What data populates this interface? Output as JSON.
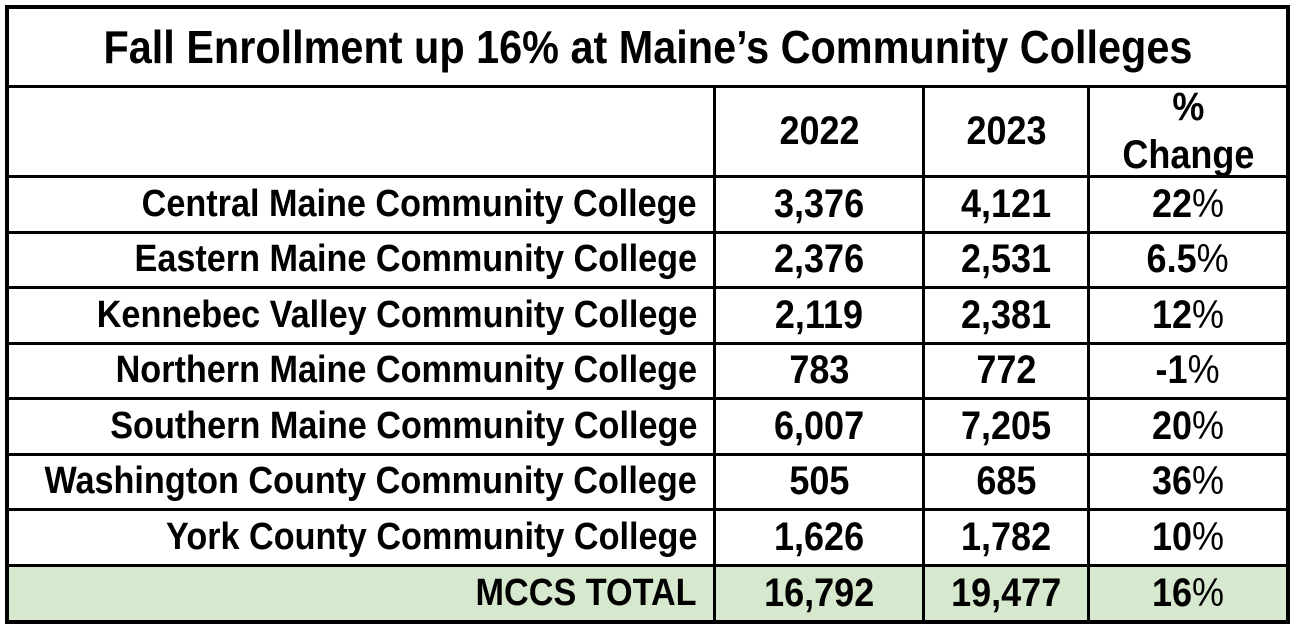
{
  "colors": {
    "background": "#ffffff",
    "border": "#000000",
    "text": "#000000",
    "total_row_bg": "#d6e8cd"
  },
  "chart_data": {
    "type": "table",
    "title": "Fall Enrollment up 16% at Maine’s Community Colleges",
    "header": {
      "college": "",
      "col_2022": "2022",
      "col_2023": "2023",
      "col_change": "%\nChange"
    },
    "rows": [
      {
        "name": "Central Maine Community College",
        "y2022": "3,376",
        "y2023": "4,121",
        "change": "22%"
      },
      {
        "name": "Eastern Maine Community College",
        "y2022": "2,376",
        "y2023": "2,531",
        "change": "6.5%"
      },
      {
        "name": "Kennebec Valley Community College",
        "y2022": "2,119",
        "y2023": "2,381",
        "change": "12%"
      },
      {
        "name": "Northern Maine Community College",
        "y2022": "783",
        "y2023": "772",
        "change": "-1%"
      },
      {
        "name": "Southern Maine Community College",
        "y2022": "6,007",
        "y2023": "7,205",
        "change": "20%"
      },
      {
        "name": "Washington County Community College",
        "y2022": "505",
        "y2023": "685",
        "change": "36%"
      },
      {
        "name": "York County Community College",
        "y2022": "1,626",
        "y2023": "1,782",
        "change": "10%"
      }
    ],
    "total": {
      "label": "MCCS TOTAL",
      "y2022": "16,792",
      "y2023": "19,477",
      "change": "16%"
    },
    "values_numeric": {
      "categories": [
        "Central Maine",
        "Eastern Maine",
        "Kennebec Valley",
        "Northern Maine",
        "Southern Maine",
        "Washington County",
        "York County"
      ],
      "enrollment_2022": [
        3376,
        2376,
        2119,
        783,
        6007,
        505,
        1626
      ],
      "enrollment_2023": [
        4121,
        2531,
        2381,
        772,
        7205,
        685,
        1782
      ],
      "pct_change": [
        22,
        6.5,
        12,
        -1,
        20,
        36,
        10
      ],
      "total_2022": 16792,
      "total_2023": 19477,
      "total_pct_change": 16
    }
  }
}
